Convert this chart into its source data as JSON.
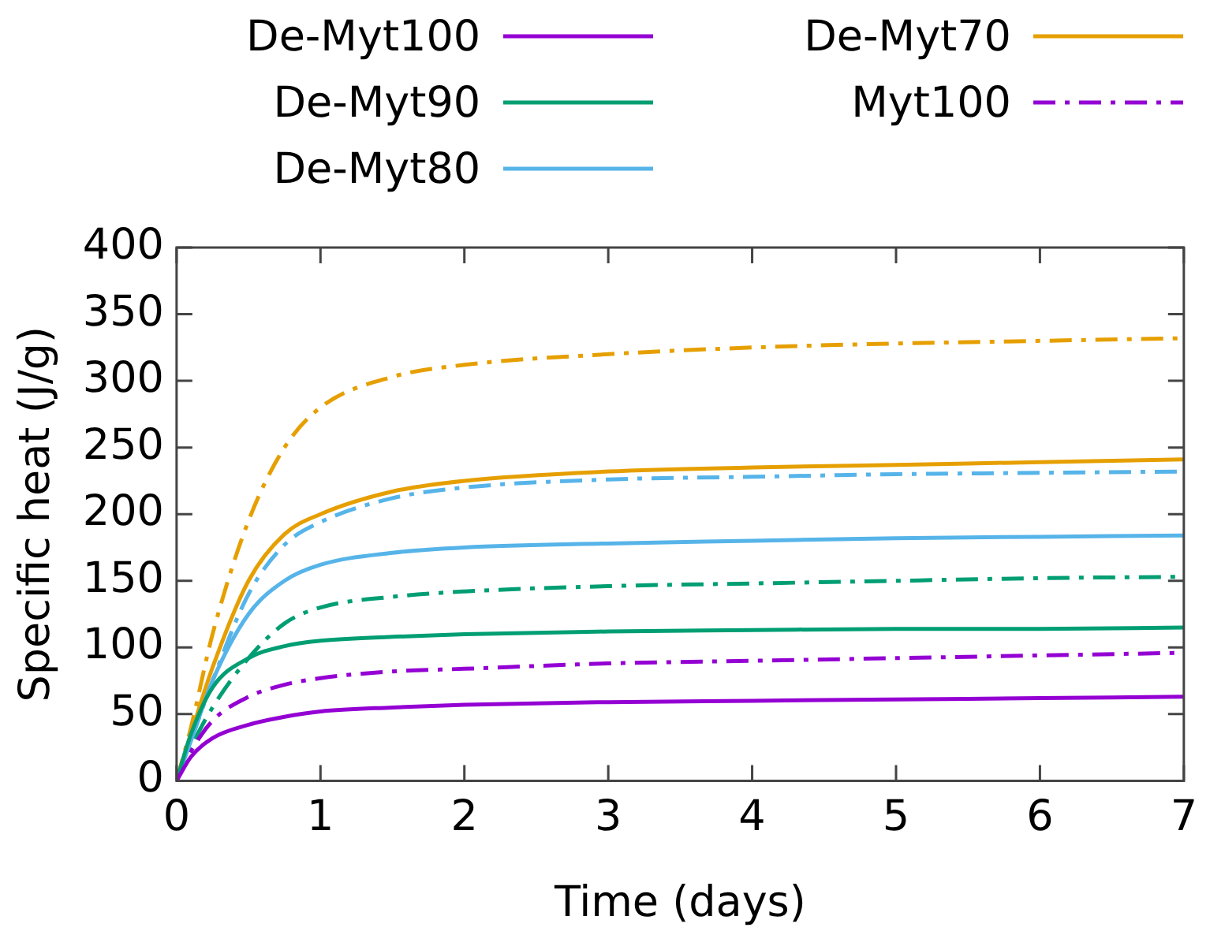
{
  "chart_data": {
    "type": "line",
    "xlabel": "Time (days)",
    "ylabel": "Specific heat (J/g)",
    "x": [
      0,
      0.1,
      0.25,
      0.5,
      0.75,
      1,
      1.5,
      2,
      3,
      4,
      5,
      6,
      7
    ],
    "xlim": [
      0,
      7
    ],
    "xticks": [
      0,
      1,
      2,
      3,
      4,
      5,
      6,
      7
    ],
    "ylim": [
      0,
      400
    ],
    "yticks": [
      0,
      50,
      100,
      150,
      200,
      250,
      300,
      350,
      400
    ],
    "grid": false,
    "legend": "top",
    "marker": "none",
    "series": [
      {
        "name": "De-Myt100",
        "color": "#9400d3",
        "line_style": "solid",
        "values": [
          0,
          18,
          32,
          42,
          48,
          52,
          55,
          57,
          59,
          60,
          61,
          62,
          63
        ]
      },
      {
        "name": "De-Myt90",
        "color": "#009e73",
        "line_style": "solid",
        "values": [
          0,
          35,
          70,
          92,
          101,
          105,
          108,
          110,
          112,
          113,
          114,
          114,
          115
        ]
      },
      {
        "name": "De-Myt80",
        "color": "#56b4e9",
        "line_style": "solid",
        "values": [
          0,
          30,
          75,
          125,
          150,
          162,
          171,
          175,
          178,
          180,
          182,
          183,
          184
        ]
      },
      {
        "name": "De-Myt70",
        "color": "#e69f00",
        "line_style": "solid",
        "values": [
          0,
          35,
          85,
          150,
          185,
          200,
          217,
          225,
          232,
          235,
          237,
          239,
          241
        ]
      },
      {
        "name": "Myt100",
        "color": "#9400d3",
        "line_style": "dashed",
        "values": [
          0,
          22,
          45,
          63,
          72,
          77,
          82,
          84,
          88,
          90,
          92,
          94,
          96
        ]
      },
      {
        "color": "#009e73",
        "line_style": "dashed",
        "values": [
          0,
          25,
          55,
          92,
          118,
          130,
          138,
          142,
          146,
          148,
          150,
          152,
          153
        ]
      },
      {
        "color": "#56b4e9",
        "line_style": "dashed",
        "values": [
          0,
          30,
          75,
          140,
          177,
          194,
          212,
          220,
          226,
          228,
          230,
          231,
          232
        ]
      },
      {
        "color": "#e69f00",
        "line_style": "dashed",
        "values": [
          0,
          40,
          110,
          195,
          250,
          280,
          303,
          312,
          320,
          325,
          328,
          330,
          332
        ]
      }
    ]
  }
}
